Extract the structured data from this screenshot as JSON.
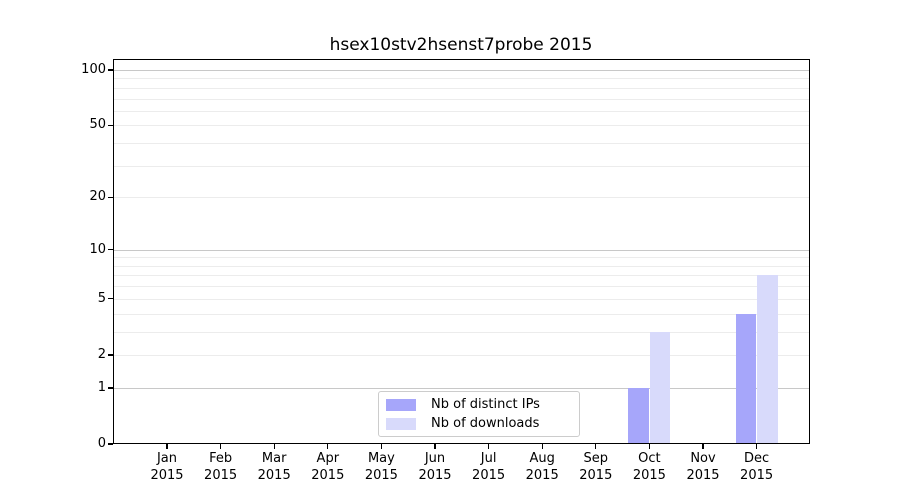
{
  "chart_data": {
    "type": "bar",
    "title": "hsex10stv2hsenst7probe 2015",
    "categories": [
      {
        "month": "Jan",
        "year": "2015"
      },
      {
        "month": "Feb",
        "year": "2015"
      },
      {
        "month": "Mar",
        "year": "2015"
      },
      {
        "month": "Apr",
        "year": "2015"
      },
      {
        "month": "May",
        "year": "2015"
      },
      {
        "month": "Jun",
        "year": "2015"
      },
      {
        "month": "Jul",
        "year": "2015"
      },
      {
        "month": "Aug",
        "year": "2015"
      },
      {
        "month": "Sep",
        "year": "2015"
      },
      {
        "month": "Oct",
        "year": "2015"
      },
      {
        "month": "Nov",
        "year": "2015"
      },
      {
        "month": "Dec",
        "year": "2015"
      }
    ],
    "series": [
      {
        "name": "Nb of distinct IPs",
        "color": "#a6a6fa",
        "values": [
          0,
          0,
          0,
          0,
          0,
          0,
          0,
          0,
          0,
          1,
          0,
          4
        ]
      },
      {
        "name": "Nb of downloads",
        "color": "#d8dafb",
        "values": [
          0,
          0,
          0,
          0,
          0,
          0,
          0,
          0,
          0,
          3,
          0,
          7
        ]
      }
    ],
    "y_axis": {
      "scale": "log1p",
      "tick_labels": [
        0,
        1,
        2,
        5,
        10,
        20,
        50,
        100
      ],
      "grid_light": [
        2,
        3,
        4,
        5,
        6,
        7,
        8,
        9,
        20,
        30,
        40,
        50,
        60,
        70,
        80,
        90
      ],
      "grid_dark": [
        1,
        10,
        100
      ],
      "range": [
        0,
        116
      ]
    },
    "xlabel": "",
    "ylabel": "",
    "legend": {
      "position": "inside-bottom-center"
    },
    "colors": {
      "grid_light": "#ececec",
      "grid_dark": "#c8c8c8",
      "spine": "#000000",
      "background": "#ffffff"
    }
  }
}
